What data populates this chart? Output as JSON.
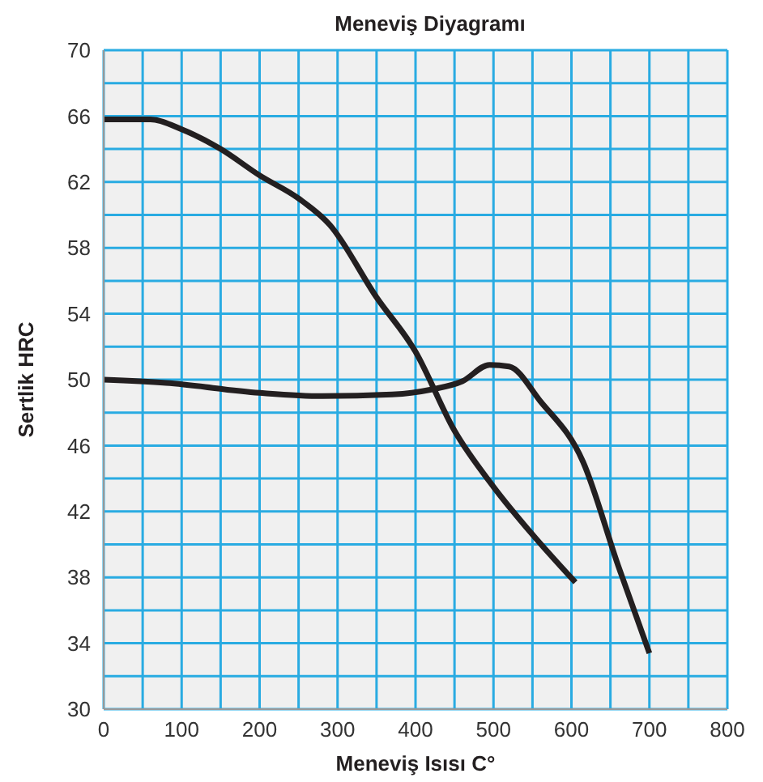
{
  "chart_data": {
    "type": "line",
    "title": "Meneviş Diyagramı",
    "xlabel": "Meneviş Isısı C°",
    "ylabel": "Sertlik HRC",
    "xlim": [
      0,
      800
    ],
    "xticks": [
      0,
      {
        "value": 50,
        "label": null
      },
      100,
      {
        "value": 150,
        "label": null
      },
      200,
      {
        "value": 250,
        "label": null
      },
      300,
      {
        "value": 350,
        "label": null
      },
      400,
      {
        "value": 450,
        "label": null
      },
      500,
      {
        "value": 550,
        "label": null
      },
      600,
      {
        "value": 650,
        "label": null
      },
      700,
      {
        "value": 750,
        "label": null
      },
      800
    ],
    "ylim": [
      30,
      70
    ],
    "yticks": [
      30,
      {
        "value": 32,
        "label": null
      },
      34,
      {
        "value": 36,
        "label": null
      },
      38,
      {
        "value": 40,
        "label": null
      },
      42,
      {
        "value": 44,
        "label": null
      },
      46,
      {
        "value": 48,
        "label": null
      },
      50,
      {
        "value": 52,
        "label": null
      },
      54,
      {
        "value": 56,
        "label": null
      },
      58,
      {
        "value": 60,
        "label": null
      },
      62,
      {
        "value": 64,
        "label": null
      },
      66,
      {
        "value": 68,
        "label": null
      },
      70
    ],
    "grid": true,
    "marker": "none",
    "line_style": "solid",
    "series": [
      {
        "color": "#231f20",
        "x": [
          0,
          60,
          100,
          150,
          200,
          250,
          290,
          350,
          400,
          450,
          500,
          550,
          605
        ],
        "values": [
          65.8,
          65.8,
          65.2,
          64,
          62.4,
          61,
          59.4,
          55,
          51.7,
          46.9,
          43.5,
          40.6,
          37.7
        ]
      },
      {
        "color": "#231f20",
        "x": [
          0,
          80,
          200,
          280,
          370,
          420,
          460,
          495,
          520,
          560,
          615,
          660,
          700
        ],
        "values": [
          50,
          49.8,
          49.2,
          49,
          49.1,
          49.4,
          49.9,
          50.9,
          50.8,
          48.7,
          45,
          38.7,
          33.4
        ]
      }
    ]
  }
}
